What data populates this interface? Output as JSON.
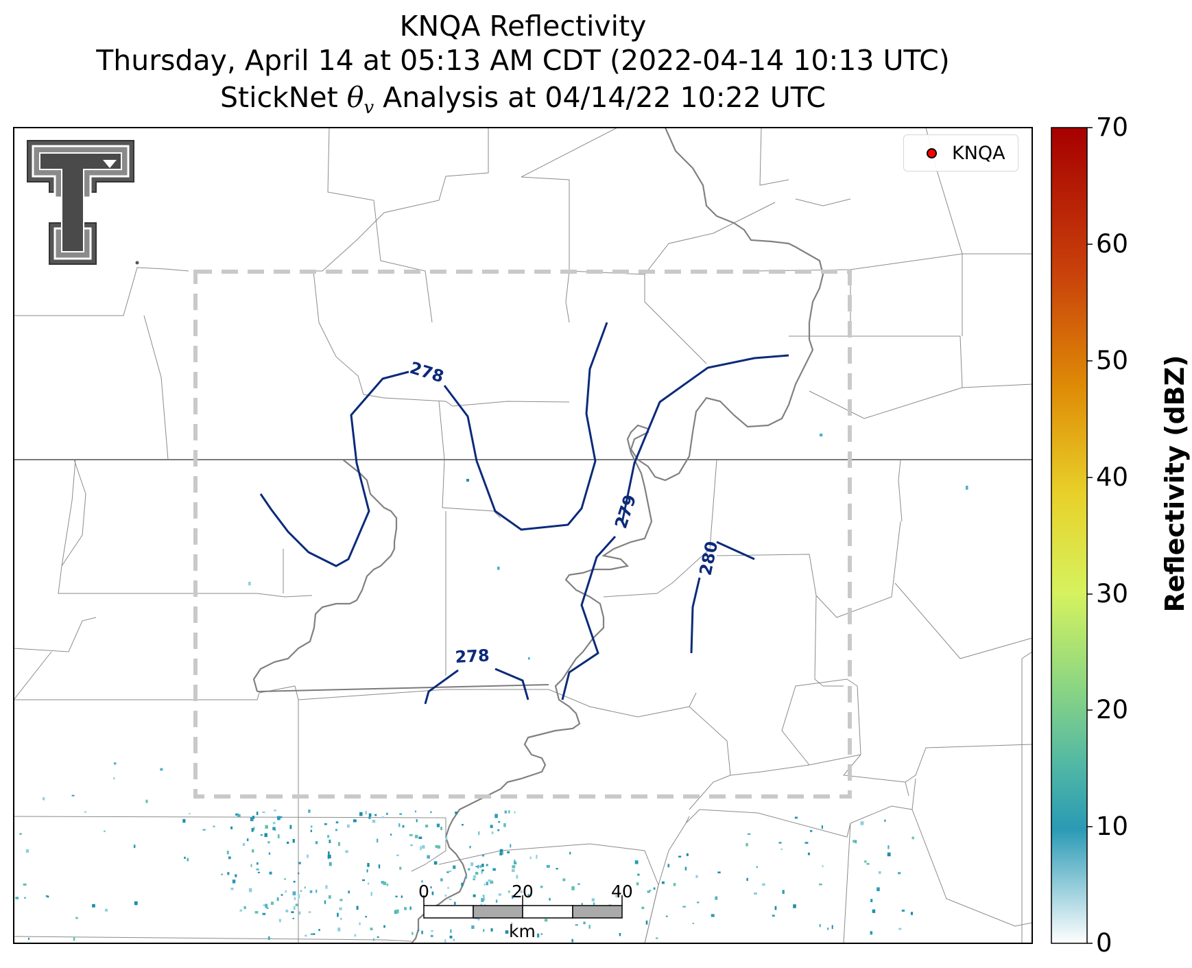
{
  "title": {
    "line1": "KNQA Reflectivity",
    "line2": "Thursday, April 14 at 05:13 AM CDT (2022-04-14 10:13 UTC)",
    "line3_prefix": "StickNet ",
    "line3_theta": "θ",
    "line3_sub": "v",
    "line3_suffix": " Analysis at 04/14/22 10:22 UTC"
  },
  "legend": {
    "label": "KNQA",
    "marker_color": "#ff0000"
  },
  "colorbar": {
    "label": "Reflectivity (dBZ)",
    "ticks": [
      "70",
      "60",
      "50",
      "40",
      "30",
      "20",
      "10",
      "0"
    ],
    "range": [
      0,
      70
    ],
    "colors": [
      "#ffffff",
      "#2a9ab5",
      "#52b8a4",
      "#8fd781",
      "#d6f25e",
      "#e8d12a",
      "#df8c07",
      "#c9420b",
      "#a60000"
    ]
  },
  "contours": {
    "color": "#0b2a7a",
    "labels": [
      "278",
      "278",
      "279",
      "280"
    ]
  },
  "scale_bar": {
    "ticks": [
      "0",
      "20",
      "40"
    ],
    "unit": "km"
  },
  "logo": "texas-tech-double-t"
}
